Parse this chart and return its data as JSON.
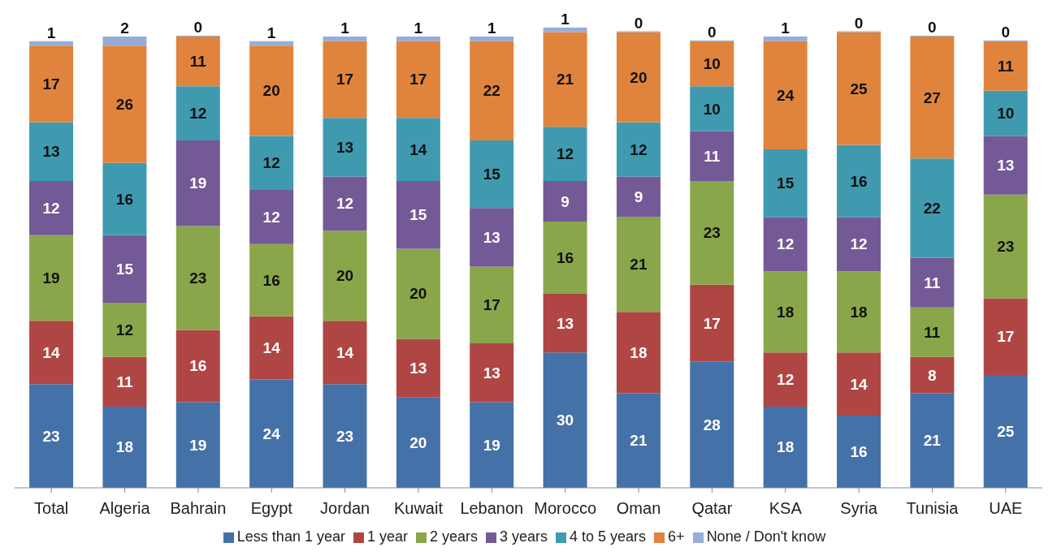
{
  "chart_data": {
    "type": "bar",
    "stacked": true,
    "data_labels": true,
    "legend": "bottom",
    "grid": false,
    "categories": [
      "Total",
      "Algeria",
      "Bahrain",
      "Egypt",
      "Jordan",
      "Kuwait",
      "Lebanon",
      "Morocco",
      "Oman",
      "Qatar",
      "KSA",
      "Syria",
      "Tunisia",
      "UAE"
    ],
    "series": [
      {
        "name": "Less than 1 year",
        "color": "#4571a9",
        "values": [
          23,
          18,
          19,
          24,
          23,
          20,
          19,
          30,
          21,
          28,
          18,
          16,
          21,
          25
        ]
      },
      {
        "name": "1 year",
        "color": "#b04644",
        "values": [
          14,
          11,
          16,
          14,
          14,
          13,
          13,
          13,
          18,
          17,
          12,
          14,
          8,
          17
        ]
      },
      {
        "name": "2 years",
        "color": "#8aa64a",
        "values": [
          19,
          12,
          23,
          16,
          20,
          20,
          17,
          16,
          21,
          23,
          18,
          18,
          11,
          23
        ]
      },
      {
        "name": "3 years",
        "color": "#735995",
        "values": [
          12,
          15,
          19,
          12,
          12,
          15,
          13,
          9,
          9,
          11,
          12,
          12,
          11,
          13
        ]
      },
      {
        "name": "4 to 5 years",
        "color": "#3f9ab0",
        "values": [
          13,
          16,
          12,
          12,
          13,
          14,
          15,
          12,
          12,
          10,
          15,
          16,
          22,
          10
        ]
      },
      {
        "name": "6+",
        "color": "#e0843d",
        "values": [
          17,
          26,
          11,
          20,
          17,
          17,
          22,
          21,
          20,
          10,
          24,
          25,
          27,
          11
        ]
      },
      {
        "name": "None / Don't know",
        "color": "#97add6",
        "values": [
          1,
          2,
          0,
          1,
          1,
          1,
          1,
          1,
          0,
          0,
          1,
          0,
          0,
          0
        ]
      }
    ]
  }
}
